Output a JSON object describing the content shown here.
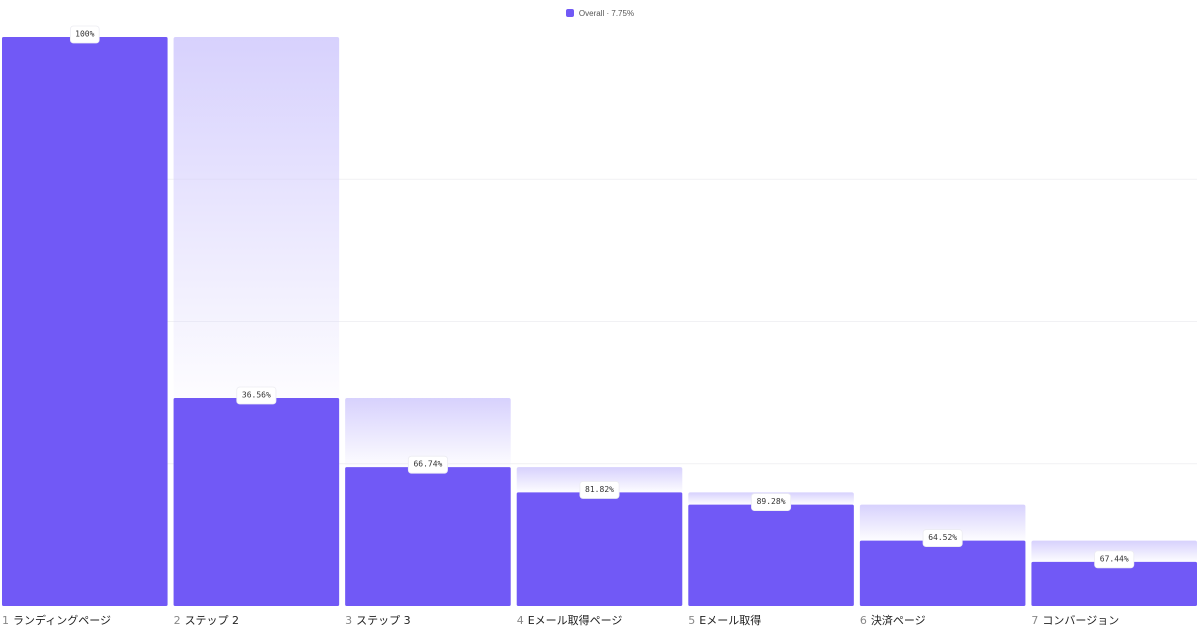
{
  "chart_data": {
    "type": "bar",
    "legend": {
      "label": "Overall · 7.75%",
      "color": "#7159F6",
      "placement": "top-center"
    },
    "categories": [
      "ランディングページ",
      "ステップ 2",
      "ステップ 3",
      "Eメール取得ページ",
      "Eメール取得",
      "決済ページ",
      "コンバージョン"
    ],
    "step_numbers": [
      "1",
      "2",
      "3",
      "4",
      "5",
      "6",
      "7"
    ],
    "series": [
      {
        "values": [
          100,
          36.56,
          24.4,
          19.96,
          17.82,
          11.5,
          7.75
        ]
      }
    ],
    "conversion_labels": [
      "100%",
      "36.56%",
      "66.74%",
      "81.82%",
      "89.28%",
      "64.52%",
      "67.44%"
    ],
    "ylim": [
      0,
      100
    ],
    "grid": true,
    "bar_color": "#7159F6",
    "dropoff_color": "#D7D1FD"
  }
}
